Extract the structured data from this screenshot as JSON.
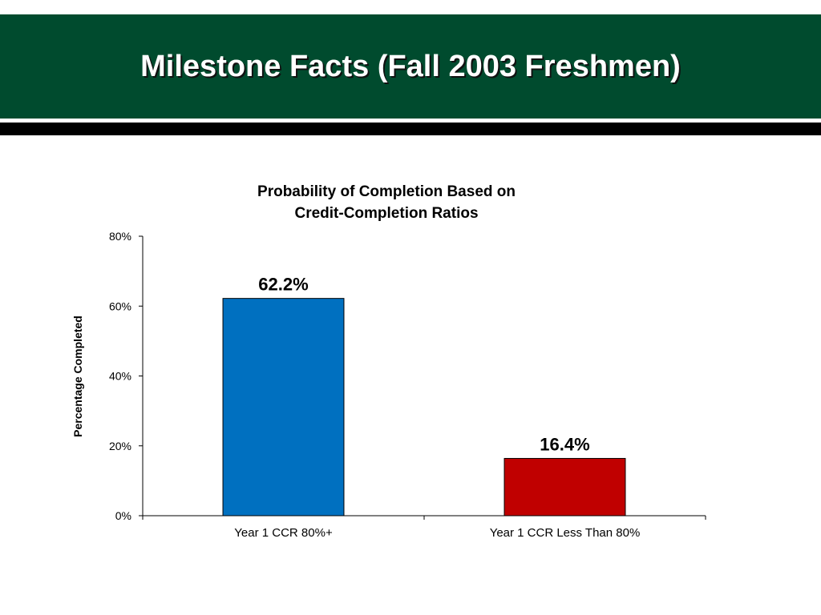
{
  "slide": {
    "title": "Milestone Facts (Fall 2003 Freshmen)",
    "header_color": "#004b2e"
  },
  "chart_data": {
    "type": "bar",
    "title_lines": [
      "Probability of Completion Based on",
      "Credit-Completion Ratios"
    ],
    "ylabel": "Percentage Completed",
    "xlabel": "",
    "categories": [
      "Year 1 CCR 80%+",
      "Year 1 CCR Less Than 80%"
    ],
    "values": [
      62.2,
      16.4
    ],
    "data_labels": [
      "62.2%",
      "16.4%"
    ],
    "bar_colors": [
      "#0070c0",
      "#c00000"
    ],
    "ylim": [
      0,
      80
    ],
    "yticks": [
      0,
      20,
      40,
      60,
      80
    ],
    "ytick_labels": [
      "0%",
      "20%",
      "40%",
      "60%",
      "80%"
    ],
    "grid": false,
    "legend": "none"
  }
}
